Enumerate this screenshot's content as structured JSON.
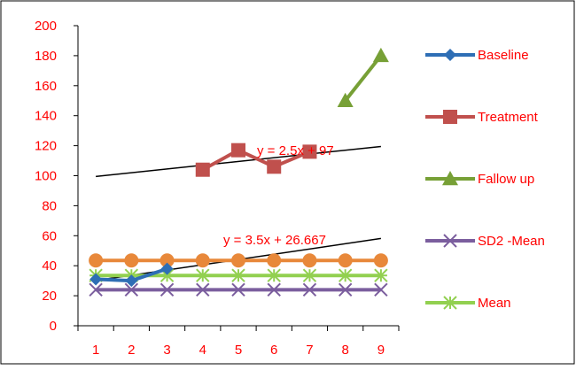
{
  "chart_data": {
    "type": "line",
    "categories": [
      "1",
      "2",
      "3",
      "4",
      "5",
      "6",
      "7",
      "8",
      "9"
    ],
    "ylim": [
      0,
      200
    ],
    "ytick_labels": [
      "0",
      "20",
      "40",
      "60",
      "80",
      "100",
      "120",
      "140",
      "160",
      "180",
      "200"
    ],
    "grid": false,
    "legend_position": "right",
    "series": [
      {
        "name": "Baseline",
        "color": "#2E6EB5",
        "marker": "diamond",
        "values": [
          31,
          30,
          38,
          null,
          null,
          null,
          null,
          null,
          null
        ]
      },
      {
        "name": "Treatment",
        "color": "#C0504D",
        "marker": "square",
        "values": [
          null,
          null,
          null,
          104,
          117,
          106,
          116,
          null,
          null
        ]
      },
      {
        "name": "Fallow up",
        "color": "#77A036",
        "marker": "triangle",
        "values": [
          null,
          null,
          null,
          null,
          null,
          null,
          null,
          150,
          180
        ]
      },
      {
        "name": "SD2  -Mean",
        "color": "#7B5E9E",
        "marker": "x",
        "values": [
          24,
          24,
          24,
          24,
          24,
          24,
          24,
          24,
          24
        ]
      },
      {
        "name": "Mean",
        "color": "#92D050",
        "marker": "asterisk",
        "values": [
          33.5,
          33.5,
          33.5,
          33.5,
          33.5,
          33.5,
          33.5,
          33.5,
          33.5
        ]
      },
      {
        "name": "",
        "color": "#E8883A",
        "marker": "circle",
        "values": [
          43.5,
          43.5,
          43.5,
          43.5,
          43.5,
          43.5,
          43.5,
          43.5,
          43.5
        ]
      }
    ],
    "trendlines": [
      {
        "label": "y = 2.5x + 97",
        "slope": 2.5,
        "intercept": 97,
        "color": "#000000"
      },
      {
        "label": "y = 3.5x + 26.667",
        "slope": 3.5,
        "intercept": 26.667,
        "color": "#000000"
      }
    ],
    "colors": {
      "axis": "#000000",
      "tick_labels": "#FF0000",
      "border": "#000000"
    }
  }
}
